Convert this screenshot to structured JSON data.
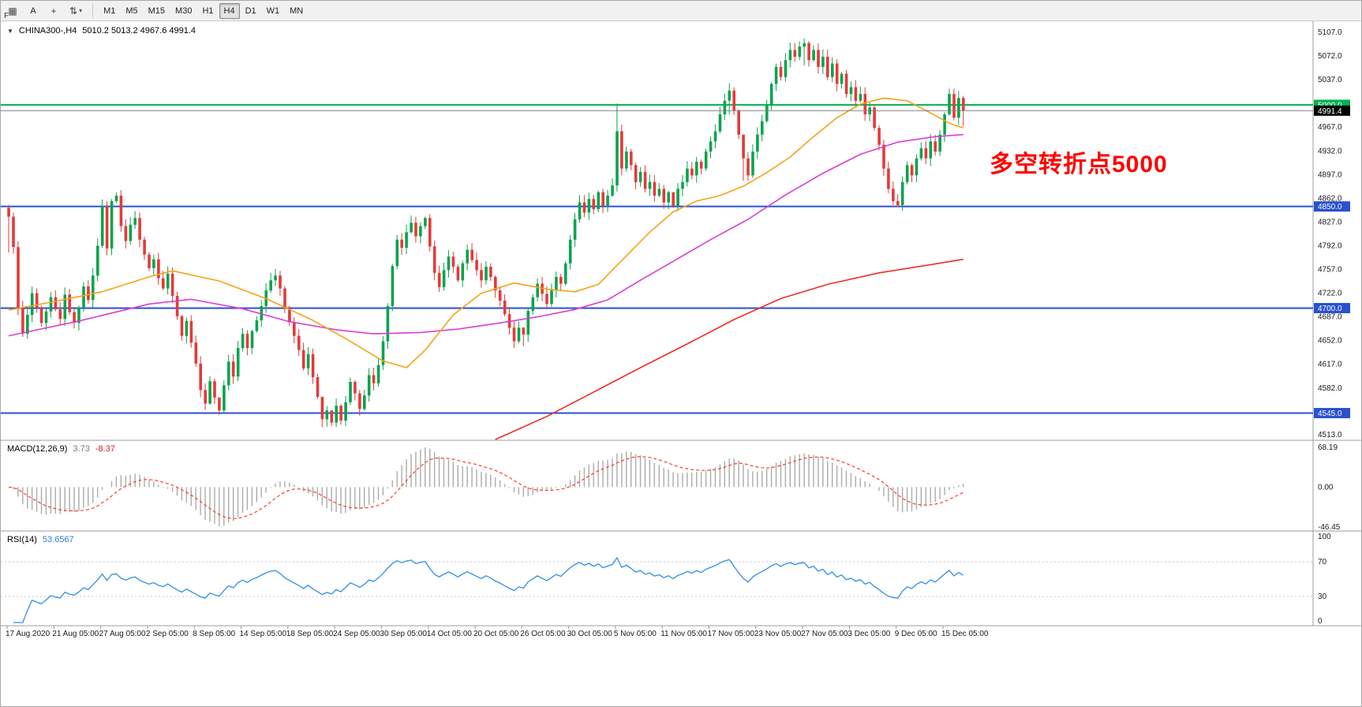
{
  "toolbar": {
    "tools": [
      {
        "name": "new-chart",
        "glyph": "▦"
      },
      {
        "name": "cursor-text",
        "glyph": "A"
      },
      {
        "name": "crosshair",
        "glyph": "+"
      },
      {
        "name": "objects-list",
        "glyph": "⇅",
        "caret": "▾"
      }
    ],
    "timeframes": [
      "M1",
      "M5",
      "M15",
      "M30",
      "H1",
      "H4",
      "D1",
      "W1",
      "MN"
    ],
    "active_timeframe": "H4",
    "side_label": "F"
  },
  "chart": {
    "dropdown_glyph": "▼",
    "symbol_timeframe": "CHINA300-,H4",
    "ohlc_text": "5010.2 5013.2 4967.6 4991.4",
    "annotation": "多空转折点5000",
    "price_ticks": [
      "5107.0",
      "5072.0",
      "5037.0",
      "5002.0",
      "4967.0",
      "4932.0",
      "4897.0",
      "4862.0",
      "4827.0",
      "4792.0",
      "4757.0",
      "4722.0",
      "4687.0",
      "4652.0",
      "4617.0",
      "4582.0",
      "4547.0",
      "4513.0"
    ],
    "time_axis": [
      "17 Aug 2020",
      "21 Aug 05:00",
      "27 Aug 05:00",
      "2 Sep 05:00",
      "8 Sep 05:00",
      "14 Sep 05:00",
      "18 Sep 05:00",
      "24 Sep 05:00",
      "30 Sep 05:00",
      "14 Oct 05:00",
      "20 Oct 05:00",
      "26 Oct 05:00",
      "30 Oct 05:00",
      "5 Nov 05:00",
      "11 Nov 05:00",
      "17 Nov 05:00",
      "23 Nov 05:00",
      "27 Nov 05:00",
      "3 Dec 05:00",
      "9 Dec 05:00",
      "15 Dec 05:00"
    ],
    "hlines": [
      {
        "value": 5000.0,
        "label": "5000.0",
        "color": "#00b050"
      },
      {
        "value": 4850.0,
        "label": "4850.0",
        "color": "#2952d0"
      },
      {
        "value": 4700.0,
        "label": "4700.0",
        "color": "#2952d0"
      },
      {
        "value": 4545.0,
        "label": "4545.0",
        "color": "#2952d0"
      }
    ],
    "current_price": {
      "value": 4991.4,
      "label": "4991.4",
      "bg": "#000000"
    },
    "colors": {
      "up": "#0aa34e",
      "down": "#e23a3a",
      "ma_fast": "#f7a11a",
      "ma_mid": "#d93fd3",
      "ma_slow": "#ee2e24",
      "price_line": "#808080",
      "macd_hist": "#ababab",
      "macd_signal": "#ff3b30",
      "rsi_line": "#2f8fe8",
      "level_line": "#c4c4d6",
      "axis_text": "#1a1a1a"
    }
  },
  "macd_panel": {
    "name": "MACD(12,26,9)",
    "value_main": "3.73",
    "value_signal": "-8.37",
    "axis": [
      "68.19",
      "0.00",
      "-46.45"
    ]
  },
  "rsi_panel": {
    "name": "RSI(14)",
    "value": "53.6567",
    "axis_top": "100",
    "axis_70": "70",
    "axis_30": "30",
    "axis_bottom": "0"
  },
  "chart_data": {
    "type": "candlestick",
    "symbol": "CHINA300-",
    "timeframe": "H4",
    "last_bar_ohlc": {
      "open": 5010.2,
      "high": 5013.2,
      "low": 4967.6,
      "close": 4991.4
    },
    "y_range": [
      4513,
      5107
    ],
    "first_open": 4848,
    "closes": [
      4835,
      4790,
      4700,
      4662,
      4690,
      4722,
      4700,
      4678,
      4695,
      4716,
      4698,
      4684,
      4720,
      4694,
      4678,
      4701,
      4732,
      4712,
      4748,
      4792,
      4851,
      4788,
      4858,
      4866,
      4821,
      4799,
      4823,
      4833,
      4801,
      4779,
      4759,
      4772,
      4744,
      4729,
      4751,
      4718,
      4688,
      4659,
      4681,
      4649,
      4618,
      4579,
      4559,
      4592,
      4568,
      4549,
      4586,
      4621,
      4599,
      4641,
      4662,
      4641,
      4666,
      4682,
      4703,
      4726,
      4741,
      4748,
      4729,
      4699,
      4679,
      4659,
      4638,
      4611,
      4632,
      4598,
      4569,
      4536,
      4549,
      4531,
      4556,
      4534,
      4561,
      4591,
      4574,
      4551,
      4571,
      4601,
      4589,
      4616,
      4651,
      4703,
      4762,
      4801,
      4789,
      4812,
      4826,
      4806,
      4821,
      4833,
      4791,
      4752,
      4731,
      4756,
      4776,
      4761,
      4741,
      4766,
      4786,
      4771,
      4756,
      4741,
      4761,
      4746,
      4726,
      4711,
      4691,
      4671,
      4651,
      4671,
      4661,
      4696,
      4716,
      4736,
      4721,
      4706,
      4726,
      4746,
      4736,
      4766,
      4801,
      4831,
      4856,
      4841,
      4861,
      4846,
      4871,
      4851,
      4866,
      4881,
      4961,
      4906,
      4931,
      4911,
      4886,
      4901,
      4876,
      4886,
      4866,
      4876,
      4856,
      4871,
      4851,
      4876,
      4886,
      4906,
      4896,
      4916,
      4906,
      4931,
      4946,
      4961,
      4986,
      5006,
      5021,
      4991,
      4956,
      4921,
      4896,
      4931,
      4956,
      4976,
      5001,
      5031,
      5056,
      5041,
      5066,
      5081,
      5071,
      5086,
      5091,
      5066,
      5081,
      5056,
      5071,
      5041,
      5061,
      5031,
      5046,
      5016,
      5026,
      5006,
      5016,
      4986,
      4996,
      4966,
      4941,
      4906,
      4876,
      4858,
      4852,
      4886,
      4911,
      4896,
      4921,
      4936,
      4921,
      4946,
      4931,
      4956,
      4986,
      5016,
      4981,
      5010.2,
      4991.4
    ],
    "wick_overrides": {
      "0": [
        4852,
        4782
      ],
      "45": [
        4560,
        4542
      ],
      "67": [
        4545,
        4524
      ],
      "69": [
        4544,
        4526
      ],
      "71": [
        4558,
        4528
      ],
      "110": [
        4672,
        4644
      ],
      "130": [
        5002,
        4872
      ],
      "142": [
        4862,
        4848
      ],
      "154": [
        5032,
        4986
      ],
      "157": [
        4932,
        4888
      ],
      "170": [
        5098,
        5058
      ],
      "190": [
        4868,
        4849
      ],
      "201": [
        5024,
        4984
      ],
      "204": [
        5013.2,
        4967.6
      ]
    },
    "ma_orange": [
      [
        0,
        4697
      ],
      [
        10,
        4710
      ],
      [
        20,
        4724
      ],
      [
        30,
        4746
      ],
      [
        35,
        4755
      ],
      [
        45,
        4740
      ],
      [
        55,
        4714
      ],
      [
        65,
        4682
      ],
      [
        72,
        4655
      ],
      [
        80,
        4622
      ],
      [
        85,
        4612
      ],
      [
        89,
        4638
      ],
      [
        95,
        4690
      ],
      [
        101,
        4722
      ],
      [
        108,
        4737
      ],
      [
        115,
        4728
      ],
      [
        121,
        4724
      ],
      [
        126,
        4735
      ],
      [
        131,
        4770
      ],
      [
        137,
        4812
      ],
      [
        142,
        4842
      ],
      [
        147,
        4858
      ],
      [
        152,
        4866
      ],
      [
        157,
        4880
      ],
      [
        162,
        4900
      ],
      [
        167,
        4923
      ],
      [
        172,
        4953
      ],
      [
        177,
        4981
      ],
      [
        182,
        5001
      ],
      [
        187,
        5010
      ],
      [
        192,
        5006
      ],
      [
        197,
        4988
      ],
      [
        201,
        4973
      ],
      [
        204,
        4966
      ]
    ],
    "ma_magenta": [
      [
        0,
        4659
      ],
      [
        15,
        4681
      ],
      [
        30,
        4706
      ],
      [
        39,
        4713
      ],
      [
        50,
        4699
      ],
      [
        60,
        4680
      ],
      [
        70,
        4668
      ],
      [
        78,
        4662
      ],
      [
        88,
        4664
      ],
      [
        96,
        4669
      ],
      [
        105,
        4678
      ],
      [
        113,
        4687
      ],
      [
        121,
        4698
      ],
      [
        128,
        4712
      ],
      [
        135,
        4741
      ],
      [
        142,
        4769
      ],
      [
        150,
        4801
      ],
      [
        158,
        4831
      ],
      [
        166,
        4867
      ],
      [
        174,
        4899
      ],
      [
        182,
        4927
      ],
      [
        190,
        4945
      ],
      [
        198,
        4953
      ],
      [
        204,
        4956
      ]
    ],
    "ma_red": [
      [
        104,
        4506
      ],
      [
        115,
        4540
      ],
      [
        125,
        4576
      ],
      [
        135,
        4612
      ],
      [
        145,
        4647
      ],
      [
        155,
        4683
      ],
      [
        165,
        4714
      ],
      [
        175,
        4735
      ],
      [
        186,
        4752
      ],
      [
        196,
        4763
      ],
      [
        204,
        4772
      ]
    ],
    "hlines": [
      5000,
      4850,
      4700,
      4545
    ],
    "macd": {
      "params": [
        12,
        26,
        9
      ],
      "last_values": [
        3.73,
        -8.37
      ],
      "axis_range": [
        -46.45,
        68.19
      ]
    },
    "rsi": {
      "period": 14,
      "last_value": 53.6567,
      "range": [
        0,
        100
      ],
      "levels": [
        30,
        70
      ]
    }
  }
}
